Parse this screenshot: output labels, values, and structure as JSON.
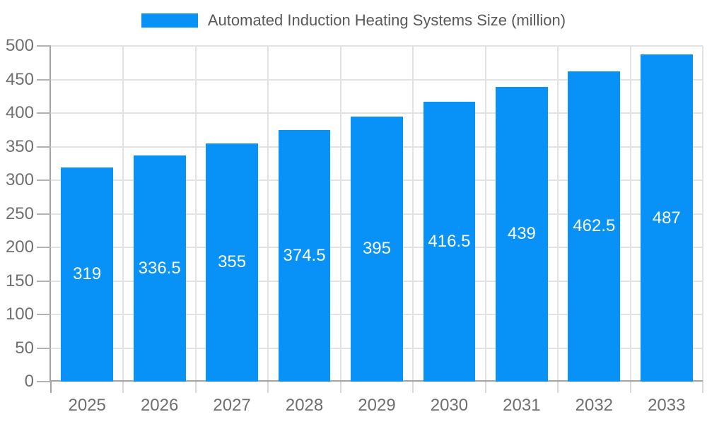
{
  "chart_data": {
    "type": "bar",
    "title": "Automated Induction Heating Systems Size (million)",
    "categories": [
      "2025",
      "2026",
      "2027",
      "2028",
      "2029",
      "2030",
      "2031",
      "2032",
      "2033"
    ],
    "values": [
      319,
      336.5,
      355,
      374.5,
      395,
      416.5,
      439,
      462.5,
      487
    ],
    "value_labels": [
      "319",
      "336.5",
      "355",
      "374.5",
      "395",
      "416.5",
      "439",
      "462.5",
      "487"
    ],
    "xlabel": "",
    "ylabel": "",
    "ylim": [
      0,
      500
    ],
    "ytick_step": 50,
    "ytick_labels": [
      "0",
      "50",
      "100",
      "150",
      "200",
      "250",
      "300",
      "350",
      "400",
      "450",
      "500"
    ],
    "grid": true,
    "legend_position": "top",
    "bar_color": "#0891f7",
    "value_label_color": "#ffffff"
  },
  "colors": {
    "background": "#ffffff",
    "bar": "#0891f7",
    "grid": "#e3e3e3",
    "axis": "#a3a3a3",
    "tick_label": "#707070",
    "title": "#58595a",
    "value_label": "#ffffff"
  }
}
